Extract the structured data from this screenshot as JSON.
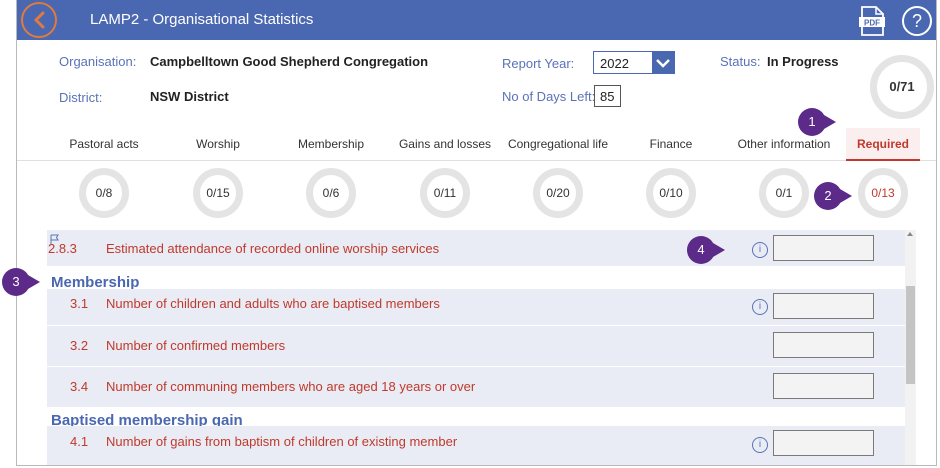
{
  "header": {
    "title": "LAMP2 - Organisational Statistics",
    "help_label": "?",
    "pdf_label": "PDF"
  },
  "info": {
    "organisation_label": "Organisation:",
    "organisation_value": "Campbelltown Good Shepherd Congregation",
    "district_label": "District:",
    "district_value": "NSW District",
    "report_year_label": "Report Year:",
    "report_year_value": "2022",
    "days_left_label": "No of Days Left:",
    "days_left_value": "85",
    "status_label": "Status:",
    "status_value": "In Progress",
    "overall_progress": "0/71"
  },
  "tabs": [
    {
      "label": "Pastoral acts",
      "progress": "0/8"
    },
    {
      "label": "Worship",
      "progress": "0/15"
    },
    {
      "label": "Membership",
      "progress": "0/6"
    },
    {
      "label": "Gains and losses",
      "progress": "0/11"
    },
    {
      "label": "Congregational life",
      "progress": "0/20"
    },
    {
      "label": "Finance",
      "progress": "0/10"
    },
    {
      "label": "Other information",
      "progress": "0/1"
    },
    {
      "label": "Required",
      "progress": "0/13"
    }
  ],
  "callouts": [
    "1",
    "2",
    "3",
    "4"
  ],
  "list": {
    "items": [
      {
        "num": "2.8.3",
        "text": "Estimated attendance of recorded online worship services",
        "info": "i"
      },
      {
        "num": "3.1",
        "text": "Number of children and adults who are baptised members",
        "info": "i"
      },
      {
        "num": "3.2",
        "text": "Number of confirmed members"
      },
      {
        "num": "3.4",
        "text": "Number of communing members who are aged 18 years or over"
      },
      {
        "num": "4.1",
        "text": "Number of gains from baptism of children of existing member",
        "info": "i"
      }
    ],
    "sections": [
      "Membership",
      "Baptised membership gain"
    ]
  },
  "colors": {
    "header_bg": "#4a67b1",
    "accent_red": "#c0392b",
    "callout_purple": "#5c2a88",
    "back_orange": "#e07a3e"
  }
}
